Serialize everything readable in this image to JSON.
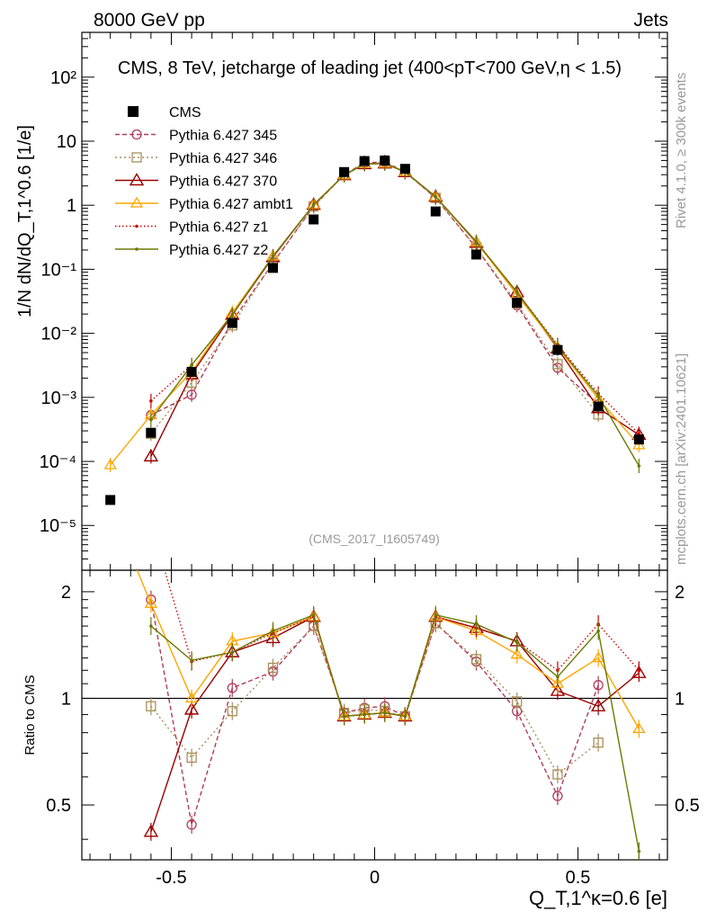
{
  "header": {
    "left": "8000 GeV pp",
    "right": "Jets"
  },
  "side_text": {
    "rivet": "Rivet 4.1.0, ≥ 300k events",
    "mcplots": "mcplots.cern.ch [arXiv:2401.10621]"
  },
  "watermark": "(CMS_2017_I1605749)",
  "colors": {
    "CMS": "#000000",
    "345": "#b03a5a",
    "346": "#a88f5a",
    "370": "#990000",
    "ambt1": "#ffa500",
    "z1": "#cc0000",
    "z2": "#6b7a00"
  },
  "chart_data": {
    "type": "line",
    "title": "CMS, 8 TeV, jetcharge of leading jet (400<pT<700 GeV,η < 1.5)",
    "xlabel": "Q_T,1^κ=0.6 [e]",
    "ylabel": "1/N dN/dQ_T,1^0.6 [1/e]",
    "ratio_ylabel": "Ratio to CMS",
    "xlim": [
      -0.72,
      0.72
    ],
    "ylim_main": [
      2e-06,
      500
    ],
    "ylim_ratio": [
      0.35,
      2.3
    ],
    "x_ticks": [
      "-0.5",
      "0",
      "0.5"
    ],
    "x_tick_values": [
      -0.5,
      0,
      0.5
    ],
    "y_ticks_main": [
      "10⁻⁵",
      "10⁻⁴",
      "10⁻³",
      "10⁻²",
      "10⁻¹",
      "1",
      "10",
      "10²"
    ],
    "y_tick_values_main": [
      1e-05,
      0.0001,
      0.001,
      0.01,
      0.1,
      1,
      10,
      100
    ],
    "y_ticks_ratio": [
      "0.5",
      "1",
      "2"
    ],
    "y_tick_values_ratio": [
      0.5,
      1,
      2
    ],
    "x": [
      -0.65,
      -0.55,
      -0.45,
      -0.35,
      -0.25,
      -0.15,
      -0.075,
      -0.025,
      0.025,
      0.075,
      0.15,
      0.25,
      0.35,
      0.45,
      0.55,
      0.65
    ],
    "data": {
      "name": "CMS",
      "values": [
        2.5e-05,
        0.00028,
        0.0025,
        0.0145,
        0.105,
        0.6,
        3.3,
        4.9,
        5.0,
        3.7,
        0.8,
        0.17,
        0.03,
        0.0055,
        0.00072,
        0.00022
      ]
    },
    "series": [
      {
        "key": "345",
        "name": "Pythia 6.427 345",
        "dash": "5,3",
        "marker": "circle",
        "values": [
          null,
          0.00053,
          0.0011,
          0.0155,
          0.125,
          0.96,
          3.0,
          4.6,
          4.75,
          3.3,
          1.3,
          0.215,
          0.0275,
          0.0029,
          0.00078,
          null
        ],
        "ratio": [
          null,
          1.9,
          0.44,
          1.07,
          1.19,
          1.6,
          0.91,
          0.94,
          0.95,
          0.89,
          1.63,
          1.27,
          0.92,
          0.53,
          1.09,
          null
        ]
      },
      {
        "key": "346",
        "name": "Pythia 6.427 346",
        "dash": "2,3",
        "marker": "square",
        "values": [
          null,
          0.00027,
          0.0017,
          0.0133,
          0.128,
          0.96,
          3.0,
          4.5,
          4.6,
          3.3,
          1.3,
          0.22,
          0.0295,
          0.0033,
          0.00054,
          null
        ],
        "ratio": [
          null,
          0.95,
          0.68,
          0.92,
          1.22,
          1.6,
          0.91,
          0.93,
          0.92,
          0.89,
          1.63,
          1.29,
          0.98,
          0.61,
          0.75,
          null
        ]
      },
      {
        "key": "370",
        "name": "Pythia 6.427 370",
        "dash": "",
        "marker": "triangle",
        "values": [
          null,
          0.00012,
          0.0023,
          0.0195,
          0.155,
          1.02,
          2.95,
          4.4,
          4.5,
          3.3,
          1.36,
          0.26,
          0.044,
          0.0058,
          0.00068,
          0.00026
        ],
        "ratio": [
          null,
          0.42,
          0.93,
          1.35,
          1.48,
          1.7,
          0.89,
          0.9,
          0.91,
          0.89,
          1.7,
          1.58,
          1.45,
          1.05,
          0.95,
          1.18
        ]
      },
      {
        "key": "ambt1",
        "name": "Pythia 6.427 ambt1",
        "dash": "",
        "marker": "triangle-open",
        "values": [
          8.8e-05,
          0.00053,
          0.0025,
          0.021,
          0.16,
          1.02,
          2.95,
          4.4,
          4.5,
          3.3,
          1.36,
          0.265,
          0.04,
          0.0061,
          0.00095,
          0.00018
        ],
        "ratio": [
          3.5,
          1.85,
          1.0,
          1.45,
          1.53,
          1.7,
          0.89,
          0.9,
          0.91,
          0.89,
          1.7,
          1.55,
          1.33,
          1.1,
          1.3,
          0.82
        ]
      },
      {
        "key": "z1",
        "name": "Pythia 6.427 z1",
        "dash": "1.5,2.5",
        "marker": "dot",
        "values": [
          null,
          0.00088,
          0.0032,
          0.0195,
          0.16,
          1.02,
          2.95,
          4.4,
          4.5,
          3.3,
          1.36,
          0.265,
          0.044,
          0.0066,
          0.00115,
          0.00027
        ],
        "ratio": [
          null,
          3.1,
          1.27,
          1.35,
          1.53,
          1.7,
          0.89,
          0.9,
          0.91,
          0.89,
          1.7,
          1.58,
          1.45,
          1.2,
          1.62,
          1.2
        ]
      },
      {
        "key": "z2",
        "name": "Pythia 6.427 z2",
        "dash": "",
        "marker": "dot",
        "values": [
          null,
          0.00045,
          0.0032,
          0.0195,
          0.16,
          1.02,
          2.95,
          4.4,
          4.5,
          3.3,
          1.36,
          0.27,
          0.044,
          0.0063,
          0.00105,
          8.5e-05
        ],
        "ratio": [
          null,
          1.6,
          1.28,
          1.35,
          1.55,
          1.72,
          0.89,
          0.9,
          0.91,
          0.89,
          1.72,
          1.62,
          1.44,
          1.15,
          1.55,
          0.37
        ]
      }
    ],
    "legend_position": "top-left"
  }
}
